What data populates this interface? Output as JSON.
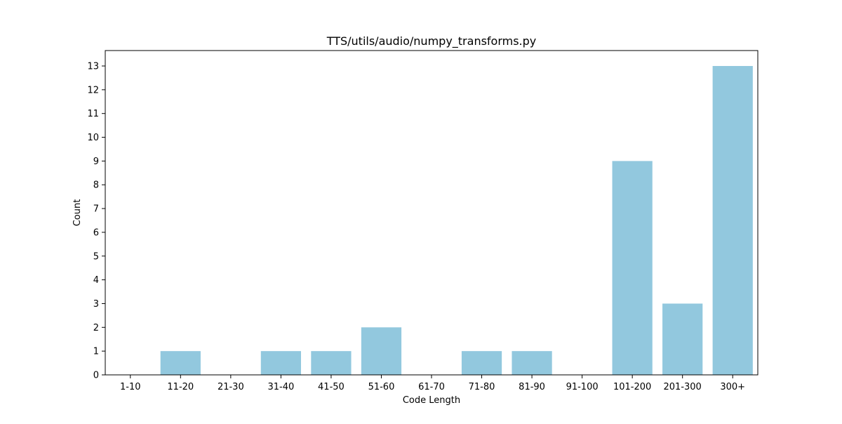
{
  "chart_data": {
    "type": "bar",
    "title": "TTS/utils/audio/numpy_transforms.py",
    "xlabel": "Code Length",
    "ylabel": "Count",
    "categories": [
      "1-10",
      "11-20",
      "21-30",
      "31-40",
      "41-50",
      "51-60",
      "61-70",
      "71-80",
      "81-90",
      "91-100",
      "101-200",
      "201-300",
      "300+"
    ],
    "values": [
      0,
      1,
      0,
      1,
      1,
      2,
      0,
      1,
      1,
      0,
      9,
      3,
      13
    ],
    "ylim": [
      0,
      13.65
    ],
    "yticks": [
      0,
      1,
      2,
      3,
      4,
      5,
      6,
      7,
      8,
      9,
      10,
      11,
      12,
      13
    ],
    "bar_color": "#92c8de",
    "grid": false,
    "legend": false
  }
}
